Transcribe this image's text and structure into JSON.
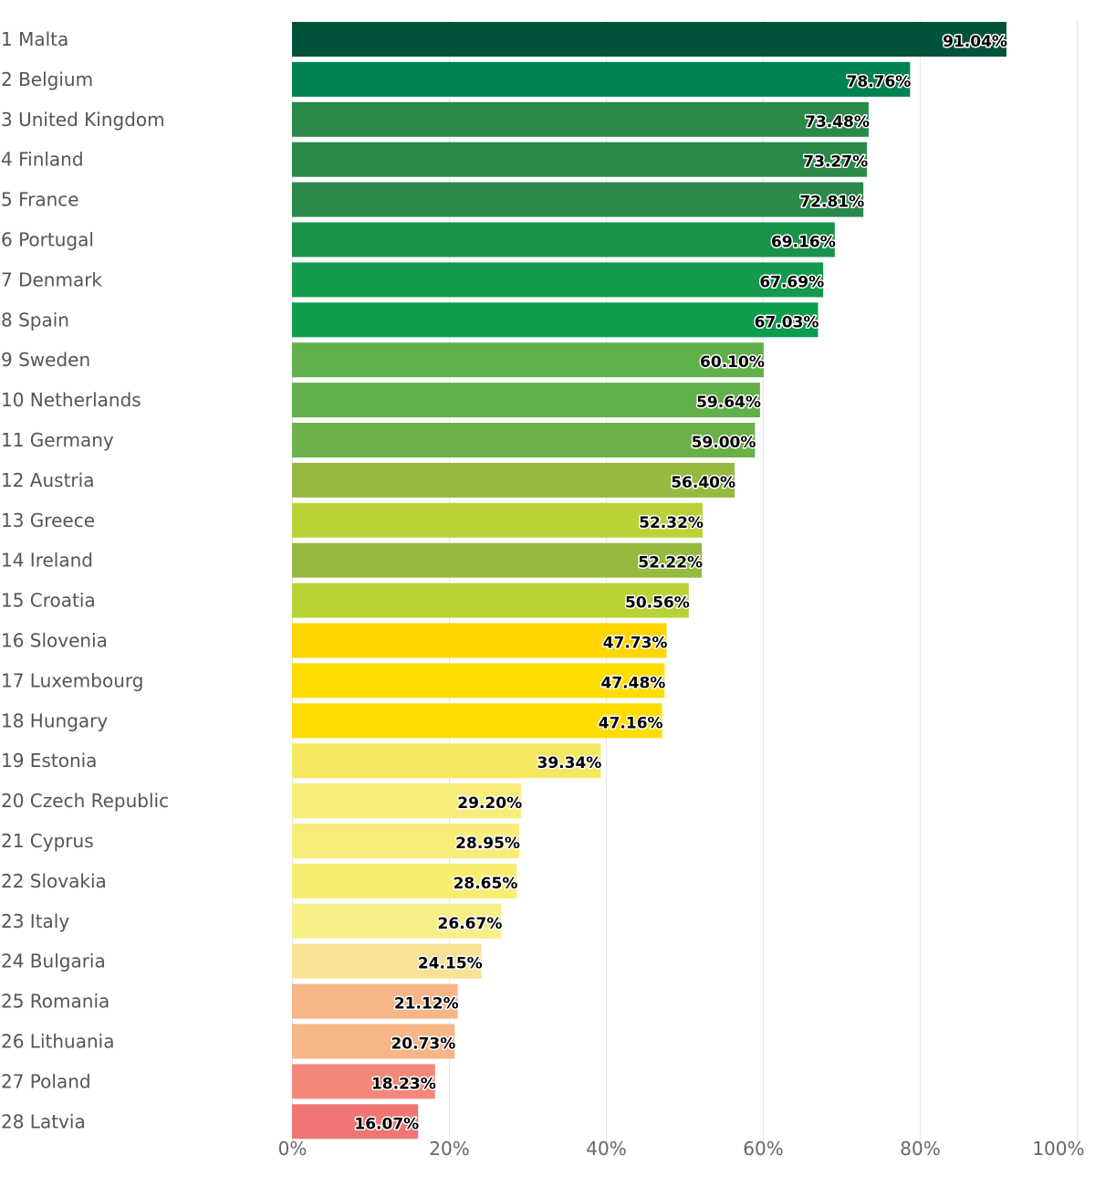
{
  "chart_data": {
    "type": "bar",
    "orientation": "horizontal",
    "categories": [
      "1 Malta",
      "2 Belgium",
      "3 United Kingdom",
      "4 Finland",
      "5 France",
      "6 Portugal",
      "7 Denmark",
      "8 Spain",
      "9 Sweden",
      "10 Netherlands",
      "11 Germany",
      "12 Austria",
      "13 Greece",
      "14 Ireland",
      "15 Croatia",
      "16 Slovenia",
      "17 Luxembourg",
      "18 Hungary",
      "19 Estonia",
      "20 Czech Republic",
      "21 Cyprus",
      "22 Slovakia",
      "23 Italy",
      "24 Bulgaria",
      "25 Romania",
      "26 Lithuania",
      "27 Poland",
      "28 Latvia"
    ],
    "values": [
      91.04,
      78.76,
      73.48,
      73.27,
      72.81,
      69.16,
      67.69,
      67.03,
      60.1,
      59.64,
      59.0,
      56.4,
      52.32,
      52.22,
      50.56,
      47.73,
      47.48,
      47.16,
      39.34,
      29.2,
      28.95,
      28.65,
      26.67,
      24.15,
      21.12,
      20.73,
      18.23,
      16.07
    ],
    "value_labels": [
      "91.04%",
      "78.76%",
      "73.48%",
      "73.27%",
      "72.81%",
      "69.16%",
      "67.69%",
      "67.03%",
      "60.10%",
      "59.64%",
      "59.00%",
      "56.40%",
      "52.32%",
      "52.22%",
      "50.56%",
      "47.73%",
      "47.48%",
      "47.16%",
      "39.34%",
      "29.20%",
      "28.95%",
      "28.65%",
      "26.67%",
      "24.15%",
      "21.12%",
      "20.73%",
      "18.23%",
      "16.07%"
    ],
    "colors": [
      "#00523a",
      "#008350",
      "#2a8a4a",
      "#2a8a4a",
      "#2a8a4a",
      "#19934a",
      "#149a4c",
      "#0c9e4c",
      "#62b04a",
      "#62b04a",
      "#6cb148",
      "#94bb40",
      "#b8d336",
      "#94bb40",
      "#b8d336",
      "#ffd500",
      "#ffdd00",
      "#ffdd00",
      "#f5e860",
      "#f7ee7a",
      "#f7ee7a",
      "#f7ee70",
      "#f7ef88",
      "#f7e296",
      "#f6b687",
      "#f6b687",
      "#f3887a",
      "#ef7674"
    ],
    "x_ticks": [
      "0%",
      "20%",
      "40%",
      "60%",
      "80%",
      "100%"
    ],
    "xlim": [
      0,
      100
    ],
    "grid": true,
    "title": "",
    "xlabel": "",
    "ylabel": ""
  }
}
